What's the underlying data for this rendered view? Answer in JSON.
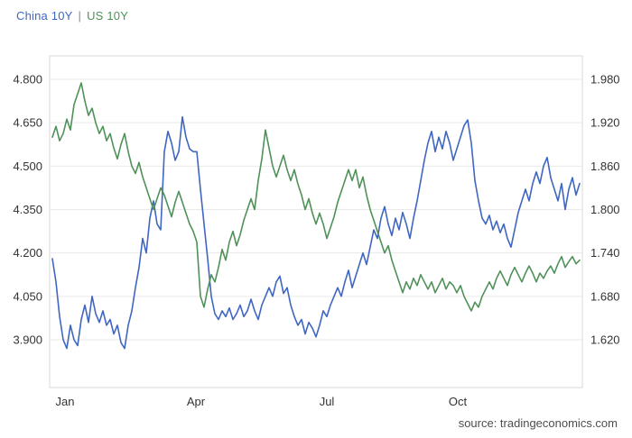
{
  "legend": {
    "series1": "China 10Y",
    "separator": "|",
    "series2": "US 10Y"
  },
  "source_text": "source: tradingeconomics.com",
  "colors": {
    "blue": "#3f66c2",
    "green": "#4f9159",
    "grid": "#e9e9e9",
    "frame": "#d9d9d9",
    "axis_text": "#333333",
    "separator_text": "#8a8a8a",
    "source_text_color": "#4d4d4d"
  },
  "chart_data": {
    "type": "line",
    "title": "China 10Y | US 10Y",
    "grid": true,
    "legend_position": "top-left",
    "x_tick_labels": [
      "Jan",
      "Apr",
      "Jul",
      "Oct"
    ],
    "left_axis": {
      "tick_labels": [
        "4.800",
        "4.650",
        "4.500",
        "4.350",
        "4.200",
        "4.050",
        "3.900"
      ],
      "min": 3.9,
      "max": 4.8
    },
    "right_axis": {
      "tick_labels": [
        "1.980",
        "1.920",
        "1.860",
        "1.800",
        "1.740",
        "1.680",
        "1.620"
      ],
      "min": 1.62,
      "max": 1.98
    },
    "series": [
      {
        "name": "China 10Y",
        "axis": "left",
        "color_key": "blue",
        "values": [
          4.18,
          4.1,
          3.98,
          3.9,
          3.87,
          3.95,
          3.9,
          3.88,
          3.97,
          4.02,
          3.96,
          4.05,
          3.99,
          3.96,
          4.0,
          3.95,
          3.97,
          3.92,
          3.95,
          3.89,
          3.87,
          3.95,
          4.0,
          4.08,
          4.15,
          4.25,
          4.2,
          4.32,
          4.38,
          4.3,
          4.28,
          4.55,
          4.62,
          4.58,
          4.52,
          4.55,
          4.67,
          4.6,
          4.56,
          4.55,
          4.55,
          4.42,
          4.3,
          4.18,
          4.05,
          3.99,
          3.97,
          4.0,
          3.98,
          4.01,
          3.97,
          3.99,
          4.02,
          3.98,
          4.0,
          4.04,
          4.0,
          3.97,
          4.02,
          4.05,
          4.08,
          4.05,
          4.1,
          4.12,
          4.06,
          4.08,
          4.02,
          3.98,
          3.95,
          3.97,
          3.92,
          3.96,
          3.94,
          3.91,
          3.95,
          4.0,
          3.98,
          4.02,
          4.05,
          4.08,
          4.05,
          4.1,
          4.14,
          4.08,
          4.12,
          4.16,
          4.2,
          4.16,
          4.22,
          4.28,
          4.25,
          4.32,
          4.36,
          4.3,
          4.26,
          4.32,
          4.28,
          4.34,
          4.3,
          4.25,
          4.32,
          4.38,
          4.45,
          4.52,
          4.58,
          4.62,
          4.55,
          4.6,
          4.56,
          4.62,
          4.58,
          4.52,
          4.56,
          4.6,
          4.64,
          4.66,
          4.58,
          4.45,
          4.38,
          4.32,
          4.3,
          4.33,
          4.28,
          4.31,
          4.27,
          4.3,
          4.25,
          4.22,
          4.28,
          4.34,
          4.38,
          4.42,
          4.38,
          4.44,
          4.48,
          4.44,
          4.5,
          4.53,
          4.46,
          4.42,
          4.38,
          4.44,
          4.35,
          4.42,
          4.46,
          4.4,
          4.44
        ]
      },
      {
        "name": "US 10Y",
        "axis": "right",
        "color_key": "green",
        "values": [
          1.9,
          1.915,
          1.895,
          1.905,
          1.925,
          1.91,
          1.945,
          1.96,
          1.975,
          1.95,
          1.93,
          1.94,
          1.92,
          1.905,
          1.915,
          1.895,
          1.905,
          1.885,
          1.87,
          1.89,
          1.905,
          1.88,
          1.86,
          1.85,
          1.865,
          1.845,
          1.83,
          1.815,
          1.8,
          1.815,
          1.83,
          1.82,
          1.805,
          1.79,
          1.81,
          1.825,
          1.81,
          1.795,
          1.78,
          1.77,
          1.755,
          1.68,
          1.665,
          1.69,
          1.71,
          1.7,
          1.72,
          1.745,
          1.73,
          1.755,
          1.77,
          1.75,
          1.765,
          1.785,
          1.8,
          1.815,
          1.8,
          1.84,
          1.87,
          1.91,
          1.885,
          1.86,
          1.845,
          1.86,
          1.875,
          1.855,
          1.84,
          1.855,
          1.835,
          1.82,
          1.8,
          1.815,
          1.795,
          1.78,
          1.795,
          1.78,
          1.76,
          1.775,
          1.79,
          1.81,
          1.825,
          1.84,
          1.855,
          1.84,
          1.855,
          1.83,
          1.845,
          1.82,
          1.8,
          1.785,
          1.77,
          1.755,
          1.74,
          1.75,
          1.73,
          1.715,
          1.7,
          1.685,
          1.7,
          1.69,
          1.705,
          1.695,
          1.71,
          1.7,
          1.69,
          1.7,
          1.685,
          1.695,
          1.705,
          1.69,
          1.7,
          1.695,
          1.685,
          1.695,
          1.68,
          1.67,
          1.66,
          1.672,
          1.665,
          1.68,
          1.69,
          1.7,
          1.69,
          1.705,
          1.715,
          1.705,
          1.695,
          1.71,
          1.72,
          1.71,
          1.7,
          1.712,
          1.722,
          1.712,
          1.7,
          1.712,
          1.705,
          1.715,
          1.722,
          1.712,
          1.725,
          1.735,
          1.72,
          1.728,
          1.735,
          1.725,
          1.73
        ]
      }
    ]
  }
}
